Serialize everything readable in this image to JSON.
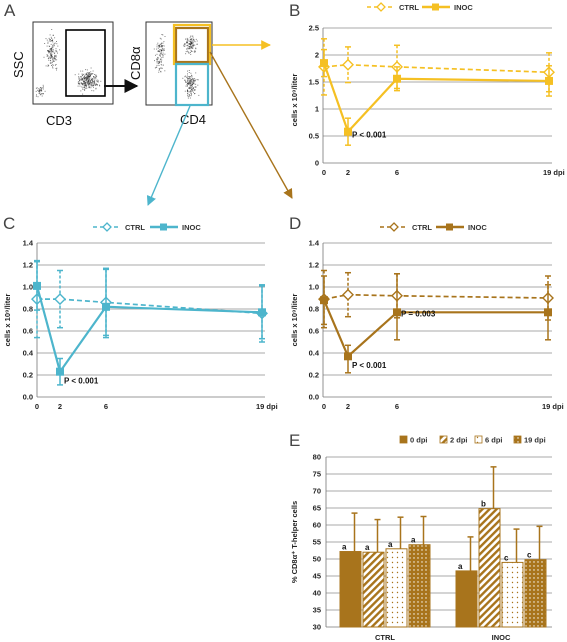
{
  "flow": {
    "plot1_y_label": "SSC",
    "plot1_x_label": "CD3",
    "plot2_y_label": "CD8α",
    "plot2_x_label": "CD4"
  },
  "colors": {
    "yellow": "#f5c023",
    "blue": "#4db5cc",
    "brown": "#a8741c",
    "grid": "#8c8c8c",
    "plot_border": "#333333"
  },
  "chart_data": [
    {
      "panel": "B",
      "type": "line",
      "color": "#f5c023",
      "x": [
        0,
        2,
        6,
        19
      ],
      "xticklabels": [
        "0",
        "2",
        "6",
        "19 dpi"
      ],
      "xlabel": "",
      "ylabel": "cells x 10⁹/liter",
      "ylim": [
        0,
        2.5
      ],
      "yticks": [
        0,
        0.5,
        1,
        1.5,
        2,
        2.5
      ],
      "yticklabels": [
        "0",
        "0.5",
        "1",
        "1.5",
        "2",
        "2.5"
      ],
      "grid": true,
      "legend_position": "top",
      "series": [
        {
          "name": "CTRL",
          "style": "dashed-open-diamond",
          "values": [
            1.78,
            1.82,
            1.78,
            1.68
          ],
          "err_up": [
            0.52,
            0.33,
            0.4,
            0.36
          ],
          "err_down": [
            0.52,
            0.33,
            0.4,
            0.36
          ]
        },
        {
          "name": "INOC",
          "style": "solid-filled-square",
          "values": [
            1.85,
            0.58,
            1.56,
            1.52
          ],
          "err_up": [
            0.25,
            0.25,
            0.22,
            0.28
          ],
          "err_down": [
            0.25,
            0.25,
            0.22,
            0.28
          ]
        }
      ],
      "annotations": [
        {
          "text": "P < 0.001",
          "x": 2,
          "y": 0.55
        }
      ]
    },
    {
      "panel": "C",
      "type": "line",
      "color": "#4db5cc",
      "x": [
        0,
        2,
        6,
        19
      ],
      "xticklabels": [
        "0",
        "2",
        "6",
        "19 dpi"
      ],
      "xlabel": "",
      "ylabel": "cells x 10⁹/liter",
      "ylim": [
        0,
        1.4
      ],
      "yticks": [
        0,
        0.2,
        0.4,
        0.6,
        0.8,
        1,
        1.2,
        1.4
      ],
      "yticklabels": [
        "0.0",
        "0.2",
        "0.4",
        "0.6",
        "0.8",
        "1.0",
        "1.2",
        "1.4"
      ],
      "grid": true,
      "legend_position": "top",
      "series": [
        {
          "name": "CTRL",
          "style": "dashed-open-diamond",
          "values": [
            0.89,
            0.89,
            0.86,
            0.76
          ],
          "err_up": [
            0.35,
            0.26,
            0.3,
            0.26
          ],
          "err_down": [
            0.35,
            0.26,
            0.3,
            0.26
          ]
        },
        {
          "name": "INOC",
          "style": "solid-filled-square",
          "values": [
            1.01,
            0.23,
            0.82,
            0.77
          ],
          "err_up": [
            0.22,
            0.12,
            0.35,
            0.24
          ],
          "err_down": [
            0.22,
            0.12,
            0.28,
            0.24
          ]
        }
      ],
      "annotations": [
        {
          "text": "P < 0.001",
          "x": 2,
          "y": 0.16
        }
      ]
    },
    {
      "panel": "D",
      "type": "line",
      "color": "#a8741c",
      "x": [
        0,
        2,
        6,
        19
      ],
      "xticklabels": [
        "0",
        "2",
        "6",
        "19 dpi"
      ],
      "xlabel": "",
      "ylabel": "cells x 10⁹/liter",
      "ylim": [
        0,
        1.4
      ],
      "yticks": [
        0,
        0.2,
        0.4,
        0.6,
        0.8,
        1,
        1.2,
        1.4
      ],
      "yticklabels": [
        "0.0",
        "0.2",
        "0.4",
        "0.6",
        "0.8",
        "1.0",
        "1.2",
        "1.4"
      ],
      "grid": true,
      "legend_position": "top",
      "series": [
        {
          "name": "CTRL",
          "style": "dashed-open-diamond",
          "values": [
            0.89,
            0.93,
            0.92,
            0.9
          ],
          "err_up": [
            0.26,
            0.2,
            0.2,
            0.2
          ],
          "err_down": [
            0.26,
            0.2,
            0.2,
            0.2
          ]
        },
        {
          "name": "INOC",
          "style": "solid-filled-square",
          "values": [
            0.88,
            0.37,
            0.77,
            0.77
          ],
          "err_up": [
            0.22,
            0.1,
            0.35,
            0.25
          ],
          "err_down": [
            0.22,
            0.15,
            0.25,
            0.25
          ]
        }
      ],
      "annotations": [
        {
          "text": "P < 0.001",
          "x": 2,
          "y": 0.3
        },
        {
          "text": "P = 0.003",
          "x": 6,
          "y": 0.77
        }
      ]
    },
    {
      "panel": "E",
      "type": "bar",
      "color": "#a8741c",
      "categories": [
        "CTRL",
        "INOC"
      ],
      "xlabel": "",
      "ylabel": "% CD8α⁺ T-helper cells",
      "ylim": [
        30,
        80
      ],
      "yticks": [
        30,
        35,
        40,
        45,
        50,
        55,
        60,
        65,
        70,
        75,
        80
      ],
      "grid": true,
      "legend_position": "top",
      "series": [
        {
          "name": "0 dpi",
          "pattern": "solid",
          "values": [
            52.2,
            46.5
          ],
          "err": [
            11.3,
            10.0
          ],
          "letters": [
            "a",
            "a"
          ]
        },
        {
          "name": "2 dpi",
          "pattern": "hatched",
          "values": [
            52.0,
            64.8
          ],
          "err": [
            9.6,
            12.3
          ],
          "letters": [
            "a",
            "b"
          ]
        },
        {
          "name": "6 dpi",
          "pattern": "dotted-white",
          "values": [
            53.0,
            49.0
          ],
          "err": [
            9.3,
            9.8
          ],
          "letters": [
            "a",
            "c"
          ]
        },
        {
          "name": "19 dpi",
          "pattern": "dotted",
          "values": [
            54.2,
            49.8
          ],
          "err": [
            8.3,
            9.8
          ],
          "letters": [
            "a",
            "c"
          ]
        }
      ]
    }
  ]
}
